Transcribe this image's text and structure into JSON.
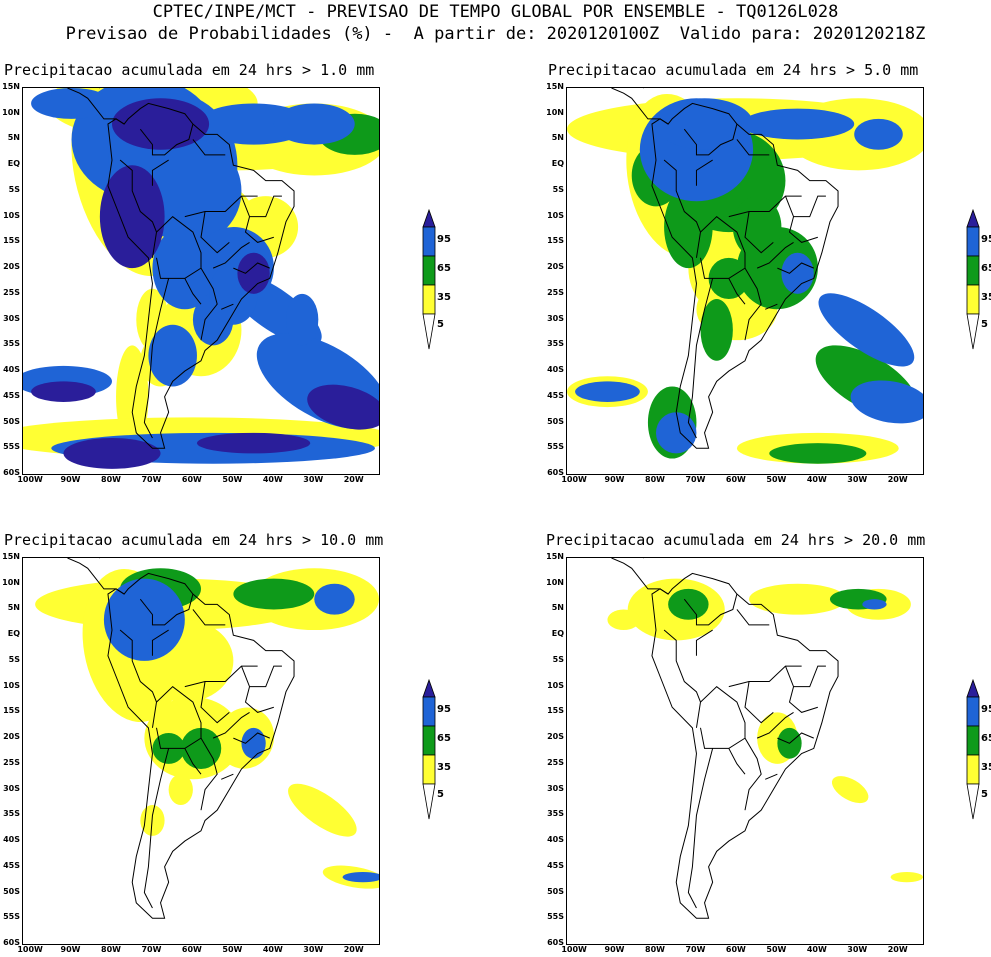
{
  "header": {
    "line1": "CPTEC/INPE/MCT - PREVISAO DE TEMPO GLOBAL POR ENSEMBLE - TQ0126L028",
    "line2": "Previsao de Probabilidades (%) -  A partir de: 2020120100Z  Valido para: 2020120218Z"
  },
  "axes": {
    "lat_labels": [
      "15N",
      "10N",
      "5N",
      "EQ",
      "5S",
      "10S",
      "15S",
      "20S",
      "25S",
      "30S",
      "35S",
      "40S",
      "45S",
      "50S",
      "55S",
      "60S"
    ],
    "lon_labels": [
      "100W",
      "90W",
      "80W",
      "70W",
      "60W",
      "50W",
      "40W",
      "30W",
      "20W"
    ]
  },
  "colorbar": {
    "levels": [
      "95",
      "65",
      "35",
      "5"
    ],
    "colors": {
      "very_high": "#2a1e9a",
      "high": "#1f64d6",
      "medium": "#0e9a1a",
      "low": "#ffff33",
      "none": "#ffffff"
    }
  },
  "panels": [
    {
      "title": "Precipitacao acumulada em 24 hrs > 1.0 mm"
    },
    {
      "title": "Precipitacao acumulada em 24 hrs > 5.0 mm"
    },
    {
      "title": "Precipitacao acumulada em 24 hrs > 10.0 mm"
    },
    {
      "title": "Precipitacao acumulada em 24 hrs > 20.0 mm"
    }
  ]
}
